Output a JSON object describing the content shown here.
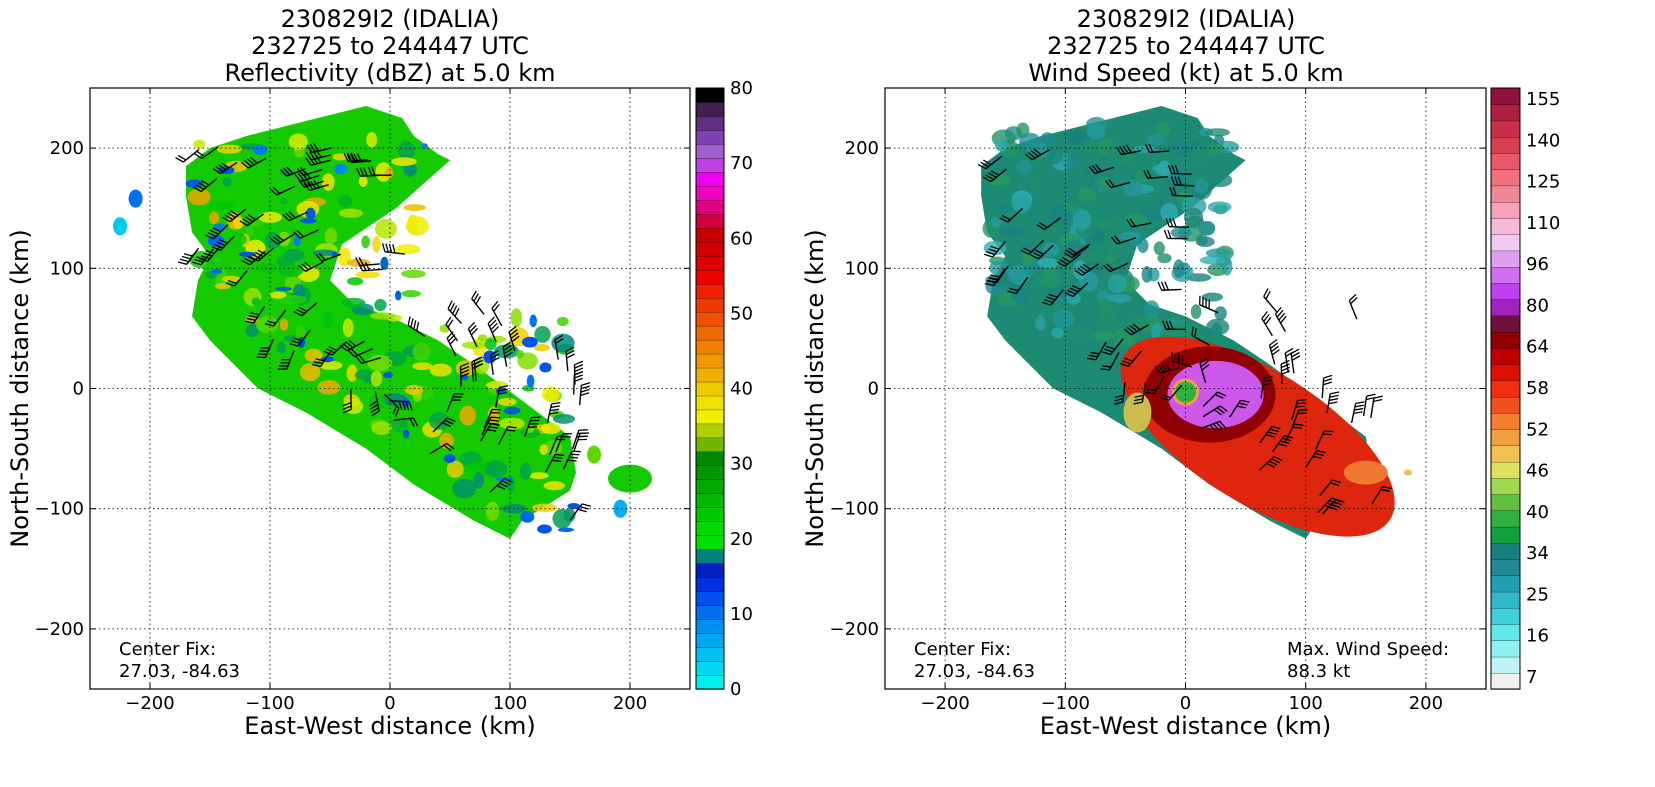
{
  "chart_data": [
    {
      "type": "heatmap",
      "title_lines": [
        "230829I2 (IDALIA)",
        "232725 to 244447 UTC",
        "Reflectivity (dBZ) at 5.0 km"
      ],
      "xlabel": "East-West distance (km)",
      "ylabel": "North-South distance (km)",
      "xlim": [
        -250,
        250
      ],
      "ylim": [
        -250,
        250
      ],
      "xticks": [
        -200,
        -100,
        0,
        100,
        200
      ],
      "yticks": [
        -200,
        -100,
        0,
        100,
        200
      ],
      "grid": true,
      "notes": [
        {
          "lines": [
            "Center Fix:",
            "27.03, -84.63"
          ],
          "position": "bottom-left"
        }
      ],
      "colorbar": {
        "min": 0,
        "max": 80,
        "labels": [
          "0",
          "10",
          "20",
          "30",
          "40",
          "50",
          "60",
          "70",
          "80"
        ],
        "colors": [
          "#00f0f0",
          "#00d8f0",
          "#00c0f0",
          "#00a8f0",
          "#0090f0",
          "#0070f0",
          "#0050f0",
          "#0030e0",
          "#0020c0",
          "#008080",
          "#00e000",
          "#00d800",
          "#00c800",
          "#00b800",
          "#00a800",
          "#009800",
          "#008800",
          "#70b800",
          "#b0d000",
          "#f0f000",
          "#f0e000",
          "#f0c800",
          "#f0b000",
          "#f09800",
          "#f08000",
          "#f06800",
          "#f05000",
          "#f03800",
          "#f02000",
          "#f00000",
          "#e00000",
          "#d00000",
          "#c80000",
          "#d00040",
          "#e00080",
          "#f000c0",
          "#f000f0",
          "#c040e0",
          "#a060d0",
          "#8040b0",
          "#603080",
          "#402050",
          "#000000"
        ]
      },
      "colormap_stops": [
        "#00f0f0",
        "#0050f0",
        "#00c800",
        "#f0f000",
        "#f08000",
        "#f00000",
        "#d00040",
        "#f000f0",
        "#000000"
      ]
    },
    {
      "type": "heatmap",
      "title_lines": [
        "230829I2 (IDALIA)",
        "232725 to 244447 UTC",
        "Wind Speed (kt) at 5.0 km"
      ],
      "xlabel": "East-West distance (km)",
      "ylabel": "North-South distance (km)",
      "xlim": [
        -250,
        250
      ],
      "ylim": [
        -250,
        250
      ],
      "xticks": [
        -200,
        -100,
        0,
        100,
        200
      ],
      "yticks": [
        -200,
        -100,
        0,
        100,
        200
      ],
      "grid": true,
      "notes": [
        {
          "lines": [
            "Center Fix:",
            "27.03, -84.63"
          ],
          "position": "bottom-left"
        },
        {
          "lines": [
            "Max. Wind Speed:",
            "88.3 kt"
          ],
          "position": "bottom-right"
        }
      ],
      "max_wind_kt": 88.3,
      "colorbar": {
        "labels": [
          "7",
          "16",
          "25",
          "34",
          "40",
          "46",
          "52",
          "58",
          "64",
          "80",
          "96",
          "110",
          "125",
          "140",
          "155"
        ],
        "colors": [
          "#f0f0f0",
          "#c0f4f4",
          "#90f0f0",
          "#60e8e8",
          "#40d0d8",
          "#30b8c8",
          "#20a0b0",
          "#208898",
          "#188080",
          "#10a040",
          "#30b040",
          "#60c040",
          "#a0d850",
          "#e0e060",
          "#f0c050",
          "#f0a040",
          "#f08030",
          "#f05020",
          "#f03010",
          "#e01000",
          "#c00000",
          "#900000",
          "#701040",
          "#a020c0",
          "#c040f0",
          "#d070f0",
          "#e0a0f0",
          "#f0c8f0",
          "#f8b8d8",
          "#f8a0b8",
          "#f08898",
          "#f07080",
          "#e85868",
          "#d84050",
          "#c83048",
          "#b02040",
          "#901040"
        ]
      },
      "colormap_stops": [
        "#f0f0f0",
        "#40d0d8",
        "#188080",
        "#30b040",
        "#f0c050",
        "#f03010",
        "#900000",
        "#c040f0",
        "#f8b8d8",
        "#e85868",
        "#901040"
      ]
    }
  ]
}
